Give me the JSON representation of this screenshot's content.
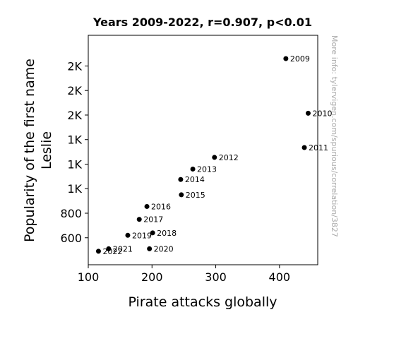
{
  "chart_data": {
    "type": "scatter",
    "title": "Years 2009-2022, r=0.907, p<0.01",
    "xlabel": "Pirate attacks globally",
    "ylabel_lines": [
      "Popularity of the first name",
      "Leslie"
    ],
    "xlim": [
      100,
      460
    ],
    "ylim": [
      380,
      2250
    ],
    "xticks": [
      {
        "value": 100,
        "label": "100"
      },
      {
        "value": 200,
        "label": "200"
      },
      {
        "value": 300,
        "label": "300"
      },
      {
        "value": 400,
        "label": "400"
      }
    ],
    "yticks": [
      {
        "value": 600,
        "label": "600"
      },
      {
        "value": 800,
        "label": "800"
      },
      {
        "value": 1000,
        "label": "1K"
      },
      {
        "value": 1200,
        "label": "1K"
      },
      {
        "value": 1400,
        "label": "1K"
      },
      {
        "value": 1600,
        "label": "2K"
      },
      {
        "value": 1800,
        "label": "2K"
      },
      {
        "value": 2000,
        "label": "2K"
      }
    ],
    "points": [
      {
        "label": "2009",
        "x": 410,
        "y": 2060
      },
      {
        "label": "2010",
        "x": 445,
        "y": 1615
      },
      {
        "label": "2011",
        "x": 439,
        "y": 1335
      },
      {
        "label": "2012",
        "x": 298,
        "y": 1255
      },
      {
        "label": "2013",
        "x": 264,
        "y": 1160
      },
      {
        "label": "2014",
        "x": 245,
        "y": 1075
      },
      {
        "label": "2015",
        "x": 246,
        "y": 950
      },
      {
        "label": "2016",
        "x": 192,
        "y": 855
      },
      {
        "label": "2017",
        "x": 180,
        "y": 750
      },
      {
        "label": "2018",
        "x": 201,
        "y": 640
      },
      {
        "label": "2019",
        "x": 162,
        "y": 620
      },
      {
        "label": "2020",
        "x": 196,
        "y": 510
      },
      {
        "label": "2021",
        "x": 132,
        "y": 510
      },
      {
        "label": "2022",
        "x": 116,
        "y": 490
      }
    ],
    "marker_color": "#000000",
    "grid": false,
    "watermark": "More info: tylervigen.com/spurious/correlation/3827"
  }
}
